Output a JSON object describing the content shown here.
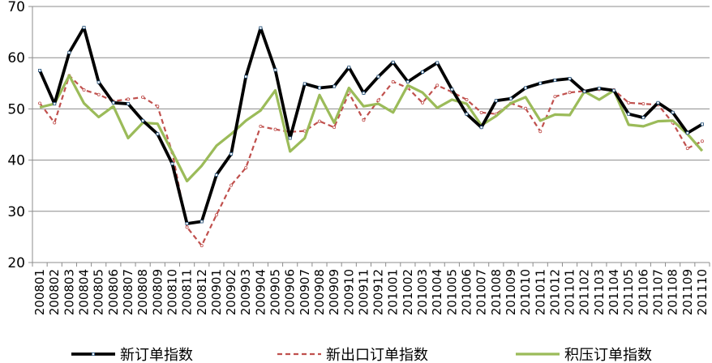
{
  "chart_data": {
    "type": "line",
    "title": "",
    "xlabel": "",
    "ylabel": "",
    "ylim": [
      20,
      70
    ],
    "yticks": [
      20,
      30,
      40,
      50,
      60,
      70
    ],
    "grid": "horizontal",
    "legend_position": "bottom",
    "x": [
      "200801",
      "200802",
      "200803",
      "200804",
      "200805",
      "200806",
      "200807",
      "200808",
      "200809",
      "200810",
      "200811",
      "200812",
      "200901",
      "200902",
      "200903",
      "200904",
      "200905",
      "200906",
      "200907",
      "200908",
      "200909",
      "200910",
      "200911",
      "200912",
      "201001",
      "201002",
      "201003",
      "201004",
      "201005",
      "201006",
      "201007",
      "201008",
      "201009",
      "201010",
      "201011",
      "201012",
      "201101",
      "201102",
      "201103",
      "201104",
      "201105",
      "201106",
      "201107",
      "201108",
      "201109",
      "201110"
    ],
    "series": [
      {
        "name": "新订单指数",
        "color": "#000000",
        "style": "solid-markers",
        "values": [
          57.5,
          51.0,
          61.0,
          65.9,
          55.2,
          51.2,
          51.0,
          47.7,
          45.1,
          39.3,
          27.6,
          28.0,
          37.1,
          41.2,
          56.3,
          65.8,
          57.6,
          44.3,
          54.9,
          54.1,
          54.4,
          58.1,
          53.1,
          56.3,
          59.1,
          55.3,
          57.2,
          59.0,
          53.8,
          49.0,
          46.4,
          51.6,
          52.0,
          54.1,
          55.0,
          55.6,
          55.9,
          53.4,
          54.0,
          53.6,
          49.0,
          48.3,
          51.2,
          49.3,
          45.3,
          47.0
        ]
      },
      {
        "name": "新出口订单指数",
        "color": "#c0504d",
        "style": "dashed",
        "values": [
          51.1,
          47.3,
          56.5,
          53.7,
          52.8,
          51.5,
          51.9,
          52.3,
          50.5,
          41.5,
          26.9,
          23.3,
          29.3,
          35.1,
          38.5,
          46.6,
          46.0,
          45.5,
          45.7,
          47.6,
          46.4,
          53.1,
          47.8,
          51.7,
          55.3,
          54.1,
          51.2,
          54.6,
          53.3,
          51.8,
          49.3,
          49.0,
          51.1,
          50.1,
          45.6,
          52.4,
          53.2,
          53.5,
          53.8,
          53.7,
          51.2,
          51.0,
          50.8,
          47.3,
          42.3,
          43.7
        ]
      },
      {
        "name": "积压订单指数",
        "color": "#9bbb59",
        "style": "solid",
        "values": [
          50.3,
          51.0,
          56.5,
          51.1,
          48.4,
          50.5,
          44.3,
          47.3,
          47.1,
          41.6,
          35.9,
          38.9,
          42.8,
          45.1,
          47.7,
          49.7,
          53.6,
          41.7,
          44.3,
          52.7,
          47.3,
          54.1,
          50.5,
          51.0,
          49.3,
          54.6,
          53.2,
          50.2,
          51.8,
          51.0,
          46.8,
          48.6,
          51.1,
          52.3,
          47.7,
          48.9,
          48.8,
          53.4,
          51.8,
          53.6,
          46.9,
          46.6,
          47.6,
          47.7,
          45.1,
          41.8
        ]
      }
    ]
  }
}
